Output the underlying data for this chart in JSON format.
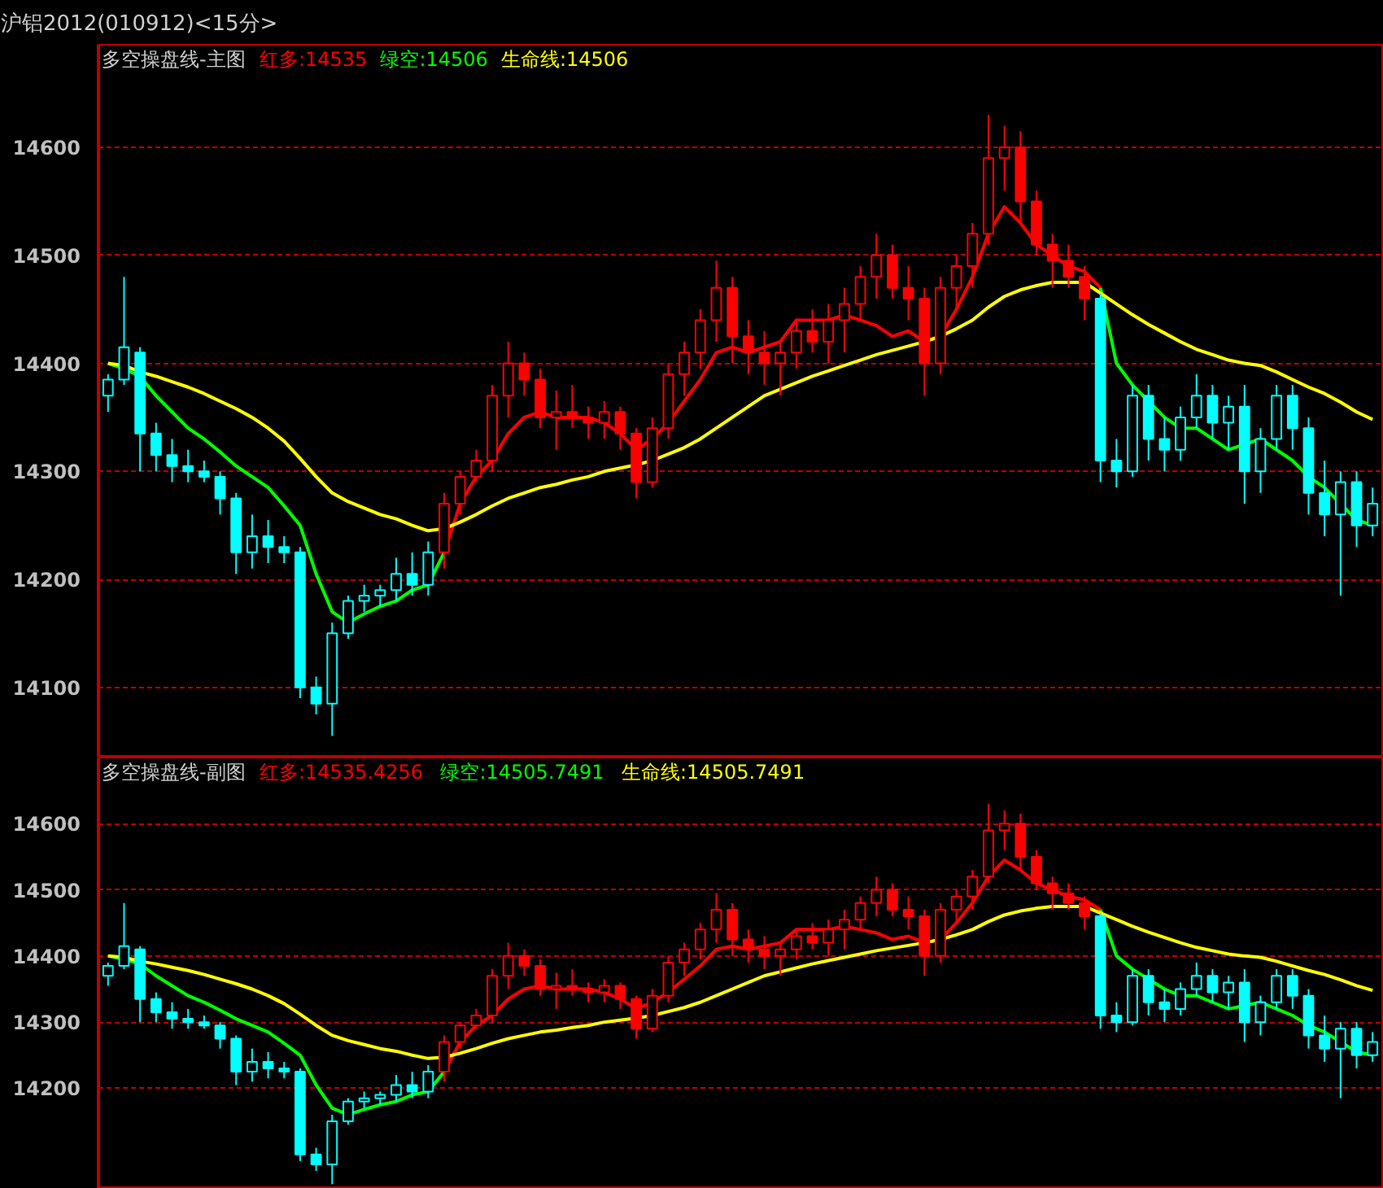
{
  "chart_data": [
    {
      "type": "candlestick",
      "title": "沪铝2012(010912)<15分>",
      "subtitle": "多空操盘线-主图",
      "ylim": [
        14035,
        14695
      ],
      "yticks": [
        14100,
        14200,
        14300,
        14400,
        14500,
        14600
      ],
      "grid": "y",
      "tick_labels": "y",
      "categories": [
        null,
        null,
        null,
        null,
        null,
        null,
        null,
        null,
        null,
        null,
        null,
        null,
        null,
        null,
        null,
        null,
        null,
        null,
        null,
        null,
        null,
        null,
        null,
        null,
        null,
        null,
        null,
        null,
        null,
        null,
        null,
        null,
        null,
        null,
        null,
        null,
        null,
        null,
        null,
        null,
        null,
        null,
        null,
        null,
        null,
        null,
        null,
        null,
        null,
        null,
        null,
        null,
        null,
        null,
        null,
        null,
        null,
        null,
        null,
        null,
        null,
        null,
        null,
        null,
        null,
        null,
        null,
        null,
        null,
        null,
        null,
        null,
        null,
        null,
        null,
        null,
        null,
        null,
        null,
        null
      ],
      "ohlc": [
        [
          14370,
          14390,
          14355,
          14385
        ],
        [
          14385,
          14480,
          14380,
          14415
        ],
        [
          14410,
          14415,
          14300,
          14335
        ],
        [
          14335,
          14345,
          14300,
          14315
        ],
        [
          14315,
          14330,
          14290,
          14305
        ],
        [
          14305,
          14320,
          14290,
          14300
        ],
        [
          14300,
          14310,
          14290,
          14295
        ],
        [
          14295,
          14300,
          14260,
          14275
        ],
        [
          14275,
          14280,
          14205,
          14225
        ],
        [
          14225,
          14260,
          14210,
          14240
        ],
        [
          14240,
          14255,
          14215,
          14230
        ],
        [
          14230,
          14240,
          14215,
          14225
        ],
        [
          14225,
          14230,
          14090,
          14100
        ],
        [
          14100,
          14110,
          14075,
          14085
        ],
        [
          14085,
          14160,
          14055,
          14150
        ],
        [
          14150,
          14185,
          14145,
          14180
        ],
        [
          14180,
          14195,
          14170,
          14185
        ],
        [
          14185,
          14195,
          14175,
          14190
        ],
        [
          14190,
          14220,
          14180,
          14205
        ],
        [
          14205,
          14225,
          14185,
          14195
        ],
        [
          14195,
          14235,
          14185,
          14225
        ],
        [
          14225,
          14280,
          14210,
          14270
        ],
        [
          14270,
          14300,
          14260,
          14295
        ],
        [
          14295,
          14320,
          14290,
          14310
        ],
        [
          14310,
          14380,
          14300,
          14370
        ],
        [
          14370,
          14420,
          14350,
          14400
        ],
        [
          14400,
          14410,
          14370,
          14385
        ],
        [
          14385,
          14395,
          14340,
          14350
        ],
        [
          14350,
          14375,
          14320,
          14355
        ],
        [
          14355,
          14380,
          14340,
          14350
        ],
        [
          14350,
          14360,
          14330,
          14345
        ],
        [
          14345,
          14365,
          14330,
          14355
        ],
        [
          14355,
          14360,
          14320,
          14335
        ],
        [
          14335,
          14340,
          14275,
          14290
        ],
        [
          14290,
          14350,
          14285,
          14340
        ],
        [
          14340,
          14400,
          14330,
          14390
        ],
        [
          14390,
          14420,
          14370,
          14410
        ],
        [
          14410,
          14450,
          14395,
          14440
        ],
        [
          14440,
          14495,
          14420,
          14470
        ],
        [
          14470,
          14480,
          14400,
          14425
        ],
        [
          14425,
          14440,
          14390,
          14410
        ],
        [
          14410,
          14430,
          14380,
          14400
        ],
        [
          14400,
          14420,
          14370,
          14410
        ],
        [
          14410,
          14440,
          14395,
          14430
        ],
        [
          14430,
          14450,
          14410,
          14420
        ],
        [
          14420,
          14455,
          14400,
          14440
        ],
        [
          14440,
          14470,
          14410,
          14455
        ],
        [
          14455,
          14490,
          14440,
          14480
        ],
        [
          14480,
          14520,
          14460,
          14500
        ],
        [
          14500,
          14510,
          14460,
          14470
        ],
        [
          14470,
          14490,
          14440,
          14460
        ],
        [
          14460,
          14470,
          14370,
          14400
        ],
        [
          14400,
          14480,
          14390,
          14470
        ],
        [
          14470,
          14500,
          14450,
          14490
        ],
        [
          14490,
          14530,
          14470,
          14520
        ],
        [
          14520,
          14630,
          14510,
          14590
        ],
        [
          14590,
          14620,
          14560,
          14600
        ],
        [
          14600,
          14615,
          14530,
          14550
        ],
        [
          14550,
          14560,
          14500,
          14510
        ],
        [
          14510,
          14520,
          14470,
          14495
        ],
        [
          14495,
          14510,
          14470,
          14480
        ],
        [
          14480,
          14490,
          14440,
          14460
        ],
        [
          14460,
          14465,
          14290,
          14310
        ],
        [
          14310,
          14330,
          14285,
          14300
        ],
        [
          14300,
          14380,
          14295,
          14370
        ],
        [
          14370,
          14380,
          14310,
          14330
        ],
        [
          14330,
          14350,
          14300,
          14320
        ],
        [
          14320,
          14360,
          14310,
          14350
        ],
        [
          14350,
          14390,
          14340,
          14370
        ],
        [
          14370,
          14380,
          14330,
          14345
        ],
        [
          14345,
          14370,
          14320,
          14360
        ],
        [
          14360,
          14380,
          14270,
          14300
        ],
        [
          14300,
          14340,
          14280,
          14330
        ],
        [
          14330,
          14380,
          14320,
          14370
        ],
        [
          14370,
          14380,
          14320,
          14340
        ],
        [
          14340,
          14350,
          14260,
          14280
        ],
        [
          14280,
          14310,
          14240,
          14260
        ],
        [
          14260,
          14300,
          14185,
          14290
        ],
        [
          14290,
          14300,
          14230,
          14250
        ],
        [
          14250,
          14285,
          14240,
          14270
        ]
      ],
      "colors": [
        "#00ffff",
        "#00ffff",
        "#00ffff",
        "#00ffff",
        "#00ffff",
        "#00ffff",
        "#00ffff",
        "#00ffff",
        "#00ffff",
        "#00ffff",
        "#00ffff",
        "#00ffff",
        "#00ffff",
        "#00ffff",
        "#00ffff",
        "#00ffff",
        "#00ffff",
        "#00ffff",
        "#00ffff",
        "#00ffff",
        "#00ffff",
        "#ff0000",
        "#ff0000",
        "#ff0000",
        "#ff0000",
        "#ff0000",
        "#ff0000",
        "#ff0000",
        "#ff0000",
        "#ff0000",
        "#ff0000",
        "#ff0000",
        "#ff0000",
        "#ff0000",
        "#ff0000",
        "#ff0000",
        "#ff0000",
        "#ff0000",
        "#ff0000",
        "#ff0000",
        "#ff0000",
        "#ff0000",
        "#ff0000",
        "#ff0000",
        "#ff0000",
        "#ff0000",
        "#ff0000",
        "#ff0000",
        "#ff0000",
        "#ff0000",
        "#ff0000",
        "#ff0000",
        "#ff0000",
        "#ff0000",
        "#ff0000",
        "#ff0000",
        "#ff0000",
        "#ff0000",
        "#ff0000",
        "#ff0000",
        "#ff0000",
        "#ff0000",
        "#00ffff",
        "#00ffff",
        "#00ffff",
        "#00ffff",
        "#00ffff",
        "#00ffff",
        "#00ffff",
        "#00ffff",
        "#00ffff",
        "#00ffff",
        "#00ffff",
        "#00ffff",
        "#00ffff",
        "#00ffff",
        "#00ffff",
        "#00ffff",
        "#00ffff",
        "#00ffff"
      ],
      "series": [
        {
          "name": "红多:14535",
          "type": "line",
          "color": "#ff0000",
          "values": [
            null,
            null,
            null,
            null,
            null,
            null,
            null,
            null,
            null,
            null,
            null,
            null,
            null,
            null,
            null,
            null,
            null,
            null,
            null,
            null,
            null,
            14225,
            14270,
            14295,
            14310,
            14335,
            14350,
            14355,
            14350,
            14350,
            14350,
            14345,
            14335,
            14320,
            14330,
            14345,
            14365,
            14385,
            14410,
            14415,
            14410,
            14415,
            14420,
            14440,
            14440,
            14440,
            14445,
            14440,
            14435,
            14425,
            14430,
            14420,
            14425,
            14450,
            14480,
            14520,
            14545,
            14530,
            14510,
            14500,
            14490,
            14485,
            14470,
            null,
            null,
            null,
            null,
            null,
            null,
            null,
            null,
            null,
            null,
            null,
            null,
            null,
            null,
            null,
            null,
            null
          ]
        },
        {
          "name": "绿空:14506",
          "type": "line",
          "color": "#00ff00",
          "values": [
            14400,
            14395,
            14388,
            14370,
            14355,
            14340,
            14330,
            14318,
            14305,
            14295,
            14285,
            14268,
            14250,
            14205,
            14170,
            14160,
            14168,
            14175,
            14180,
            14190,
            14195,
            14225,
            null,
            null,
            null,
            null,
            null,
            null,
            null,
            null,
            null,
            null,
            null,
            null,
            null,
            null,
            null,
            null,
            null,
            null,
            null,
            null,
            null,
            null,
            null,
            null,
            null,
            null,
            null,
            null,
            null,
            null,
            null,
            null,
            null,
            null,
            null,
            null,
            null,
            null,
            null,
            null,
            14470,
            14400,
            14380,
            14365,
            14350,
            14340,
            14340,
            14330,
            14320,
            14325,
            14330,
            14320,
            14310,
            14295,
            14285,
            14270,
            14255,
            14250
          ]
        },
        {
          "name": "生命线:14506",
          "type": "line",
          "color": "#ffff00",
          "values": [
            14400,
            14398,
            14392,
            14388,
            14383,
            14378,
            14372,
            14365,
            14358,
            14350,
            14340,
            14328,
            14312,
            14295,
            14280,
            14272,
            14266,
            14260,
            14256,
            14250,
            14245,
            14247,
            14253,
            14260,
            14268,
            14275,
            14280,
            14285,
            14288,
            14292,
            14295,
            14300,
            14303,
            14306,
            14310,
            14316,
            14322,
            14330,
            14340,
            14350,
            14360,
            14370,
            14376,
            14382,
            14388,
            14393,
            14398,
            14403,
            14408,
            14412,
            14416,
            14420,
            14425,
            14432,
            14440,
            14452,
            14462,
            14468,
            14472,
            14475,
            14475,
            14475,
            14465,
            14455,
            14445,
            14436,
            14428,
            14420,
            14413,
            14408,
            14403,
            14400,
            14398,
            14392,
            14385,
            14378,
            14372,
            14364,
            14355,
            14348
          ]
        }
      ]
    },
    {
      "type": "candlestick",
      "subtitle": "多空操盘线-副图",
      "ylim": [
        14048,
        14700
      ],
      "yticks": [
        14200,
        14300,
        14400,
        14500,
        14600
      ],
      "grid": "y",
      "tick_labels": "y",
      "categories": [
        null,
        null,
        null,
        null,
        null,
        null,
        null,
        null,
        null,
        null,
        null,
        null,
        null,
        null,
        null,
        null,
        null,
        null,
        null,
        null,
        null,
        null,
        null,
        null,
        null,
        null,
        null,
        null,
        null,
        null,
        null,
        null,
        null,
        null,
        null,
        null,
        null,
        null,
        null,
        null,
        null,
        null,
        null,
        null,
        null,
        null,
        null,
        null,
        null,
        null,
        null,
        null,
        null,
        null,
        null,
        null,
        null,
        null,
        null,
        null,
        null,
        null,
        null,
        null,
        null,
        null,
        null,
        null,
        null,
        null,
        null,
        null,
        null,
        null,
        null,
        null,
        null,
        null,
        null,
        null
      ],
      "ohlc": [
        [
          14370,
          14390,
          14355,
          14385
        ],
        [
          14385,
          14480,
          14380,
          14415
        ],
        [
          14410,
          14415,
          14300,
          14335
        ],
        [
          14335,
          14345,
          14300,
          14315
        ],
        [
          14315,
          14330,
          14290,
          14305
        ],
        [
          14305,
          14320,
          14290,
          14300
        ],
        [
          14300,
          14310,
          14290,
          14295
        ],
        [
          14295,
          14300,
          14260,
          14275
        ],
        [
          14275,
          14280,
          14205,
          14225
        ],
        [
          14225,
          14260,
          14210,
          14240
        ],
        [
          14240,
          14255,
          14215,
          14230
        ],
        [
          14230,
          14240,
          14215,
          14225
        ],
        [
          14225,
          14230,
          14090,
          14100
        ],
        [
          14100,
          14110,
          14075,
          14085
        ],
        [
          14085,
          14160,
          14055,
          14150
        ],
        [
          14150,
          14185,
          14145,
          14180
        ],
        [
          14180,
          14195,
          14170,
          14185
        ],
        [
          14185,
          14195,
          14175,
          14190
        ],
        [
          14190,
          14220,
          14180,
          14205
        ],
        [
          14205,
          14225,
          14185,
          14195
        ],
        [
          14195,
          14235,
          14185,
          14225
        ],
        [
          14225,
          14280,
          14210,
          14270
        ],
        [
          14270,
          14300,
          14260,
          14295
        ],
        [
          14295,
          14320,
          14290,
          14310
        ],
        [
          14310,
          14380,
          14300,
          14370
        ],
        [
          14370,
          14420,
          14350,
          14400
        ],
        [
          14400,
          14410,
          14370,
          14385
        ],
        [
          14385,
          14395,
          14340,
          14350
        ],
        [
          14350,
          14375,
          14320,
          14355
        ],
        [
          14355,
          14380,
          14340,
          14350
        ],
        [
          14350,
          14360,
          14330,
          14345
        ],
        [
          14345,
          14365,
          14330,
          14355
        ],
        [
          14355,
          14360,
          14320,
          14335
        ],
        [
          14335,
          14340,
          14275,
          14290
        ],
        [
          14290,
          14350,
          14285,
          14340
        ],
        [
          14340,
          14400,
          14330,
          14390
        ],
        [
          14390,
          14420,
          14370,
          14410
        ],
        [
          14410,
          14450,
          14395,
          14440
        ],
        [
          14440,
          14495,
          14420,
          14470
        ],
        [
          14470,
          14480,
          14400,
          14425
        ],
        [
          14425,
          14440,
          14390,
          14410
        ],
        [
          14410,
          14430,
          14380,
          14400
        ],
        [
          14400,
          14420,
          14370,
          14410
        ],
        [
          14410,
          14440,
          14395,
          14430
        ],
        [
          14430,
          14450,
          14410,
          14420
        ],
        [
          14420,
          14455,
          14400,
          14440
        ],
        [
          14440,
          14470,
          14410,
          14455
        ],
        [
          14455,
          14490,
          14440,
          14480
        ],
        [
          14480,
          14520,
          14460,
          14500
        ],
        [
          14500,
          14510,
          14460,
          14470
        ],
        [
          14470,
          14490,
          14440,
          14460
        ],
        [
          14460,
          14470,
          14370,
          14400
        ],
        [
          14400,
          14480,
          14390,
          14470
        ],
        [
          14470,
          14500,
          14450,
          14490
        ],
        [
          14490,
          14530,
          14470,
          14520
        ],
        [
          14520,
          14630,
          14510,
          14590
        ],
        [
          14590,
          14620,
          14560,
          14600
        ],
        [
          14600,
          14615,
          14530,
          14550
        ],
        [
          14550,
          14560,
          14500,
          14510
        ],
        [
          14510,
          14520,
          14470,
          14495
        ],
        [
          14495,
          14510,
          14470,
          14480
        ],
        [
          14480,
          14490,
          14440,
          14460
        ],
        [
          14460,
          14465,
          14290,
          14310
        ],
        [
          14310,
          14330,
          14285,
          14300
        ],
        [
          14300,
          14380,
          14295,
          14370
        ],
        [
          14370,
          14380,
          14310,
          14330
        ],
        [
          14330,
          14350,
          14300,
          14320
        ],
        [
          14320,
          14360,
          14310,
          14350
        ],
        [
          14350,
          14390,
          14340,
          14370
        ],
        [
          14370,
          14380,
          14330,
          14345
        ],
        [
          14345,
          14370,
          14320,
          14360
        ],
        [
          14360,
          14380,
          14270,
          14300
        ],
        [
          14300,
          14340,
          14280,
          14330
        ],
        [
          14330,
          14380,
          14320,
          14370
        ],
        [
          14370,
          14380,
          14320,
          14340
        ],
        [
          14340,
          14350,
          14260,
          14280
        ],
        [
          14280,
          14310,
          14240,
          14260
        ],
        [
          14260,
          14300,
          14185,
          14290
        ],
        [
          14290,
          14300,
          14230,
          14250
        ],
        [
          14250,
          14285,
          14240,
          14270
        ]
      ],
      "colors": [
        "#00ffff",
        "#00ffff",
        "#00ffff",
        "#00ffff",
        "#00ffff",
        "#00ffff",
        "#00ffff",
        "#00ffff",
        "#00ffff",
        "#00ffff",
        "#00ffff",
        "#00ffff",
        "#00ffff",
        "#00ffff",
        "#00ffff",
        "#00ffff",
        "#00ffff",
        "#00ffff",
        "#00ffff",
        "#00ffff",
        "#00ffff",
        "#ff0000",
        "#ff0000",
        "#ff0000",
        "#ff0000",
        "#ff0000",
        "#ff0000",
        "#ff0000",
        "#ff0000",
        "#ff0000",
        "#ff0000",
        "#ff0000",
        "#ff0000",
        "#ff0000",
        "#ff0000",
        "#ff0000",
        "#ff0000",
        "#ff0000",
        "#ff0000",
        "#ff0000",
        "#ff0000",
        "#ff0000",
        "#ff0000",
        "#ff0000",
        "#ff0000",
        "#ff0000",
        "#ff0000",
        "#ff0000",
        "#ff0000",
        "#ff0000",
        "#ff0000",
        "#ff0000",
        "#ff0000",
        "#ff0000",
        "#ff0000",
        "#ff0000",
        "#ff0000",
        "#ff0000",
        "#ff0000",
        "#ff0000",
        "#ff0000",
        "#ff0000",
        "#00ffff",
        "#00ffff",
        "#00ffff",
        "#00ffff",
        "#00ffff",
        "#00ffff",
        "#00ffff",
        "#00ffff",
        "#00ffff",
        "#00ffff",
        "#00ffff",
        "#00ffff",
        "#00ffff",
        "#00ffff",
        "#00ffff",
        "#00ffff",
        "#00ffff",
        "#00ffff"
      ],
      "series": [
        {
          "name": "红多:14535.4256",
          "type": "line",
          "color": "#ff0000",
          "values": [
            null,
            null,
            null,
            null,
            null,
            null,
            null,
            null,
            null,
            null,
            null,
            null,
            null,
            null,
            null,
            null,
            null,
            null,
            null,
            null,
            null,
            14225,
            14270,
            14295,
            14310,
            14335,
            14350,
            14355,
            14350,
            14350,
            14350,
            14345,
            14335,
            14320,
            14330,
            14345,
            14365,
            14385,
            14410,
            14415,
            14410,
            14415,
            14420,
            14440,
            14440,
            14440,
            14445,
            14440,
            14435,
            14425,
            14430,
            14420,
            14425,
            14450,
            14480,
            14520,
            14545,
            14530,
            14510,
            14500,
            14490,
            14485,
            14470,
            null,
            null,
            null,
            null,
            null,
            null,
            null,
            null,
            null,
            null,
            null,
            null,
            null,
            null,
            null,
            null,
            null
          ]
        },
        {
          "name": "绿空:14505.7491",
          "type": "line",
          "color": "#00ff00",
          "values": [
            14400,
            14395,
            14388,
            14370,
            14355,
            14340,
            14330,
            14318,
            14305,
            14295,
            14285,
            14268,
            14250,
            14205,
            14170,
            14160,
            14168,
            14175,
            14180,
            14190,
            14195,
            14225,
            null,
            null,
            null,
            null,
            null,
            null,
            null,
            null,
            null,
            null,
            null,
            null,
            null,
            null,
            null,
            null,
            null,
            null,
            null,
            null,
            null,
            null,
            null,
            null,
            null,
            null,
            null,
            null,
            null,
            null,
            null,
            null,
            null,
            null,
            null,
            null,
            null,
            null,
            null,
            null,
            14470,
            14400,
            14380,
            14365,
            14350,
            14340,
            14340,
            14330,
            14320,
            14325,
            14330,
            14320,
            14310,
            14295,
            14285,
            14270,
            14255,
            14250
          ]
        },
        {
          "name": "生命线:14505.7491",
          "type": "line",
          "color": "#ffff00",
          "values": [
            14400,
            14398,
            14392,
            14388,
            14383,
            14378,
            14372,
            14365,
            14358,
            14350,
            14340,
            14328,
            14312,
            14295,
            14280,
            14272,
            14266,
            14260,
            14256,
            14250,
            14245,
            14247,
            14253,
            14260,
            14268,
            14275,
            14280,
            14285,
            14288,
            14292,
            14295,
            14300,
            14303,
            14306,
            14310,
            14316,
            14322,
            14330,
            14340,
            14350,
            14360,
            14370,
            14376,
            14382,
            14388,
            14393,
            14398,
            14403,
            14408,
            14412,
            14416,
            14420,
            14425,
            14432,
            14440,
            14452,
            14462,
            14468,
            14472,
            14475,
            14475,
            14475,
            14465,
            14455,
            14445,
            14436,
            14428,
            14420,
            14413,
            14408,
            14403,
            14400,
            14398,
            14392,
            14385,
            14378,
            14372,
            14364,
            14355,
            14348
          ]
        }
      ]
    }
  ]
}
